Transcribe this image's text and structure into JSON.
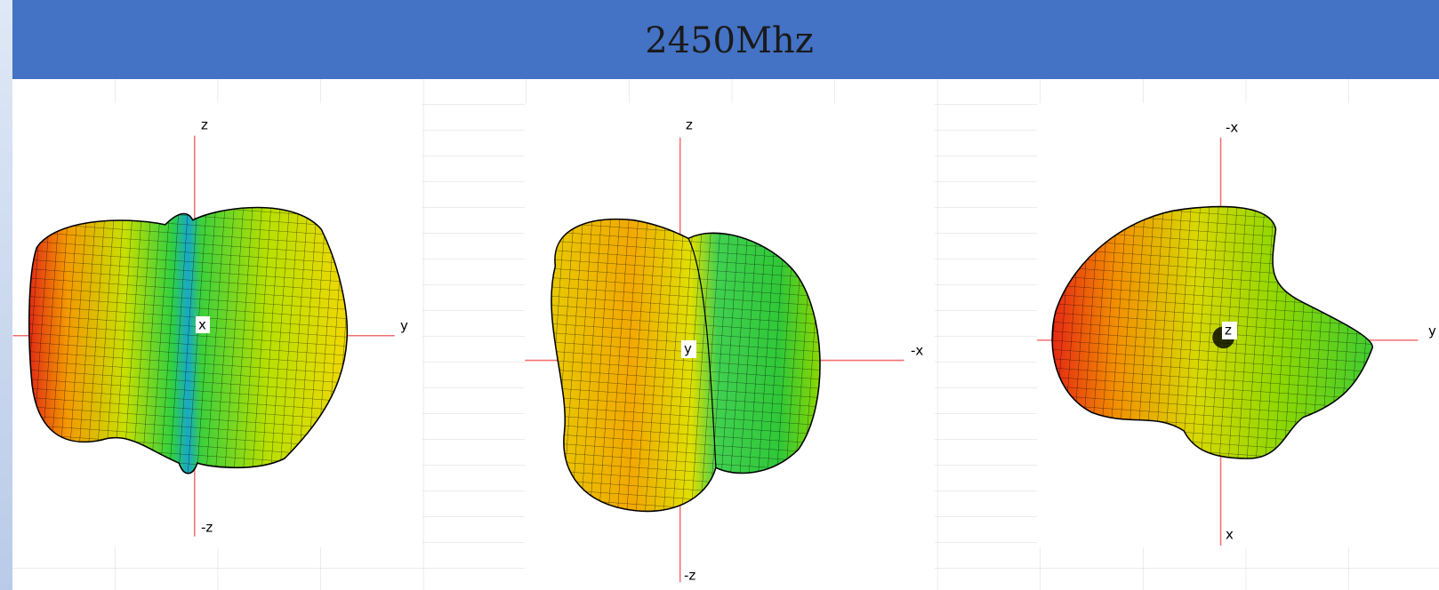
{
  "header": {
    "title": "2450Mhz"
  },
  "panels": [
    {
      "labels": {
        "top": "z",
        "bottom": "-z",
        "right": "y",
        "center": "x"
      }
    },
    {
      "labels": {
        "top": "z",
        "bottom": "-z",
        "right": "-x",
        "center": "y"
      }
    },
    {
      "labels": {
        "top": "-x",
        "bottom": "x",
        "right": "y",
        "center": "z"
      }
    }
  ]
}
